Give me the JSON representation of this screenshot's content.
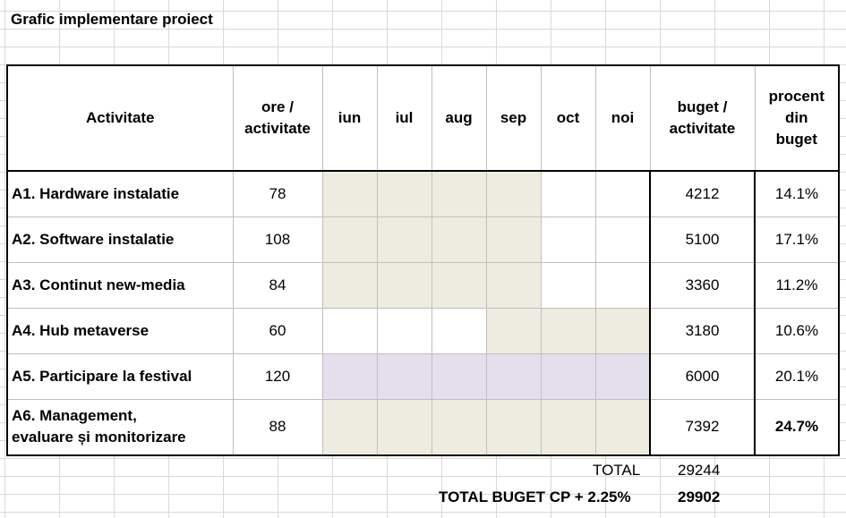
{
  "title": "Grafic implementare proiect",
  "headers": {
    "activity": "Activitate",
    "hours": [
      "ore /",
      "activitate"
    ],
    "months": [
      "iun",
      "iul",
      "aug",
      "sep",
      "oct",
      "noi"
    ],
    "budget": [
      "buget /",
      "activitate"
    ],
    "percent": [
      "procent",
      "din",
      "buget"
    ]
  },
  "colors": {
    "gantt_fill": "#eeece1",
    "gantt_fill_alt": "#e4dfec"
  },
  "rows": [
    {
      "activity": "A1. Hardware instalatie",
      "hours": "78",
      "months": [
        1,
        1,
        1,
        1,
        0,
        0
      ],
      "fill": "a",
      "budget": "4212",
      "percent": "14.1%",
      "bold_percent": false
    },
    {
      "activity": "A2. Software instalatie",
      "hours": "108",
      "months": [
        1,
        1,
        1,
        1,
        0,
        0
      ],
      "fill": "a",
      "budget": "5100",
      "percent": "17.1%",
      "bold_percent": false
    },
    {
      "activity": "A3. Continut new-media",
      "hours": "84",
      "months": [
        1,
        1,
        1,
        1,
        0,
        0
      ],
      "fill": "a",
      "budget": "3360",
      "percent": "11.2%",
      "bold_percent": false
    },
    {
      "activity": "A4. Hub metaverse",
      "hours": "60",
      "months": [
        0,
        0,
        0,
        1,
        1,
        1
      ],
      "fill": "a",
      "budget": "3180",
      "percent": "10.6%",
      "bold_percent": false
    },
    {
      "activity": "A5. Participare la festival",
      "hours": "120",
      "months": [
        1,
        1,
        1,
        1,
        1,
        1
      ],
      "fill": "b",
      "budget": "6000",
      "percent": "20.1%",
      "bold_percent": false
    },
    {
      "activity": [
        "A6. Management,",
        "evaluare și monitorizare"
      ],
      "hours": "88",
      "months": [
        1,
        1,
        1,
        1,
        1,
        1
      ],
      "fill": "a",
      "budget": "7392",
      "percent": "24.7%",
      "bold_percent": true
    }
  ],
  "totals": {
    "total_label": "TOTAL",
    "total_value": "29244",
    "grand_label": "TOTAL BUGET CP + 2.25%",
    "grand_value": "29902"
  }
}
